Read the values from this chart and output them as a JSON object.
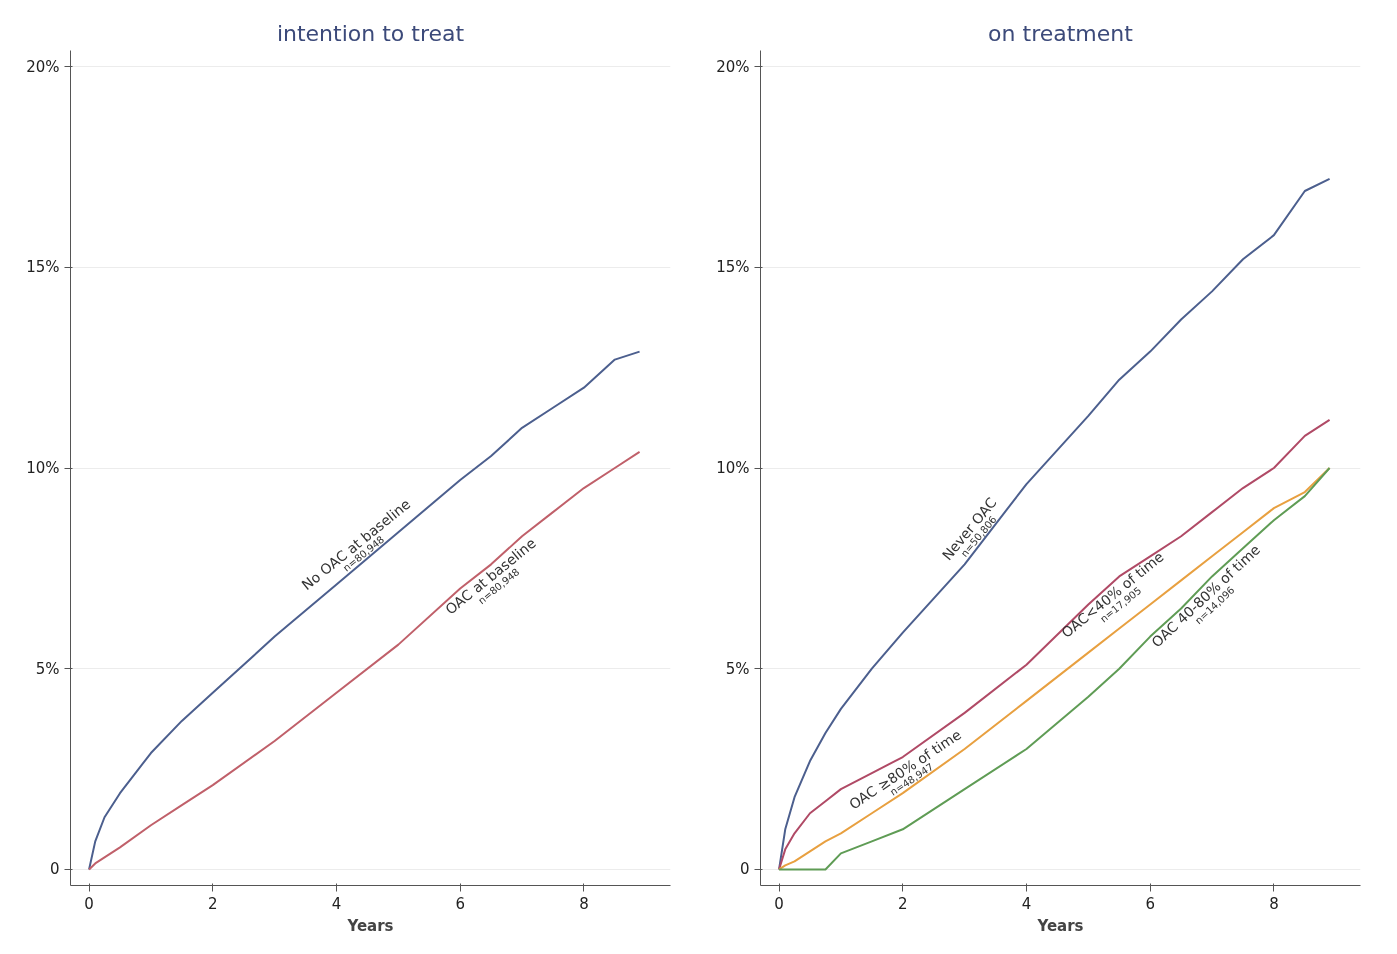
{
  "chart_data": [
    {
      "type": "line",
      "title": "intention to treat",
      "xlabel": "Years",
      "xlim": [
        -0.3,
        9.4
      ],
      "ylim": [
        -0.4,
        20.4
      ],
      "xticks": [
        0,
        2,
        4,
        6,
        8
      ],
      "yticks": [
        {
          "value": 0,
          "label": "0"
        },
        {
          "value": 5,
          "label": "5%"
        },
        {
          "value": 10,
          "label": "10%"
        },
        {
          "value": 15,
          "label": "15%"
        },
        {
          "value": 20,
          "label": "20%"
        }
      ],
      "grid": "y",
      "x": [
        0,
        0.1,
        0.25,
        0.5,
        1,
        1.5,
        2,
        3,
        4,
        5,
        6,
        6.5,
        7,
        7.5,
        8,
        8.5,
        8.9
      ],
      "series": [
        {
          "name": "No OAC at baseline",
          "color": "#4c5f8e",
          "values": [
            0,
            0.7,
            1.3,
            1.9,
            2.9,
            3.7,
            4.4,
            5.8,
            7.1,
            8.4,
            9.7,
            10.3,
            11.0,
            11.5,
            12.0,
            12.7,
            12.9
          ]
        },
        {
          "name": "OAC at baseline",
          "color": "#c0606a",
          "values": [
            0,
            0.15,
            0.3,
            0.55,
            1.1,
            1.6,
            2.1,
            3.2,
            4.4,
            5.6,
            7.0,
            7.6,
            8.3,
            8.9,
            9.5,
            10.0,
            10.4
          ]
        }
      ],
      "annotations": [
        "n=80,948",
        "n=80,948"
      ]
    },
    {
      "type": "line",
      "title": "on treatment",
      "xlabel": "Years",
      "xlim": [
        -0.3,
        9.4
      ],
      "ylim": [
        -0.4,
        20.4
      ],
      "xticks": [
        0,
        2,
        4,
        6,
        8
      ],
      "yticks": [
        {
          "value": 0,
          "label": "0"
        },
        {
          "value": 5,
          "label": "5%"
        },
        {
          "value": 10,
          "label": "10%"
        },
        {
          "value": 15,
          "label": "15%"
        },
        {
          "value": 20,
          "label": "20%"
        }
      ],
      "grid": "y",
      "x": [
        0,
        0.1,
        0.25,
        0.5,
        0.75,
        1,
        1.5,
        2,
        3,
        4,
        5,
        5.5,
        6,
        6.5,
        7,
        7.5,
        8,
        8.5,
        8.9
      ],
      "series": [
        {
          "name": "Never OAC",
          "color": "#4c5f8e",
          "values": [
            0,
            1.0,
            1.8,
            2.7,
            3.4,
            4.0,
            5.0,
            5.9,
            7.6,
            9.6,
            11.3,
            12.2,
            12.9,
            13.7,
            14.4,
            15.2,
            15.8,
            16.9,
            17.2
          ]
        },
        {
          "name": "OAC<40% of time",
          "color": "#b04a66",
          "values": [
            0,
            0.5,
            0.9,
            1.4,
            1.7,
            2.0,
            2.4,
            2.8,
            3.9,
            5.1,
            6.6,
            7.3,
            7.8,
            8.3,
            8.9,
            9.5,
            10.0,
            10.8,
            11.2
          ]
        },
        {
          "name": "OAC ≥80% of time",
          "color": "#e8a040",
          "values": [
            0,
            0.1,
            0.2,
            0.45,
            0.7,
            0.9,
            1.4,
            1.9,
            3.0,
            4.2,
            5.4,
            6.0,
            6.6,
            7.2,
            7.8,
            8.4,
            9.0,
            9.4,
            10.0
          ]
        },
        {
          "name": "OAC 40-80% of time",
          "color": "#5f9c55",
          "values": [
            0,
            0,
            0,
            0,
            0,
            0.4,
            0.7,
            1.0,
            2.0,
            3.0,
            4.3,
            5.0,
            5.8,
            6.5,
            7.3,
            8.0,
            8.7,
            9.3,
            10.0
          ]
        }
      ],
      "annotations": [
        "n=50,806",
        "n=17,905",
        "n=48,947",
        "n=14,096"
      ]
    }
  ]
}
